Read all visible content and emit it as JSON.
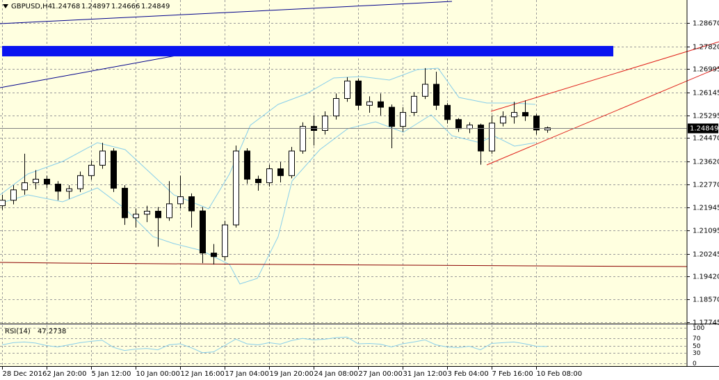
{
  "chart_data": {
    "type": "candlestick",
    "title": "GBPUSD,H4",
    "ohlc": [
      [
        1.22,
        1.224,
        1.2185,
        1.222
      ],
      [
        1.222,
        1.2275,
        1.2205,
        1.2258
      ],
      [
        1.2258,
        1.239,
        1.224,
        1.2284
      ],
      [
        1.2284,
        1.233,
        1.226,
        1.2297
      ],
      [
        1.2297,
        1.231,
        1.2265,
        1.2279
      ],
      [
        1.2279,
        1.229,
        1.222,
        1.2253
      ],
      [
        1.2253,
        1.2275,
        1.2225,
        1.2262
      ],
      [
        1.2262,
        1.2325,
        1.225,
        1.231
      ],
      [
        1.231,
        1.2365,
        1.2295,
        1.2348
      ],
      [
        1.2348,
        1.243,
        1.2335,
        1.24
      ],
      [
        1.24,
        1.241,
        1.225,
        1.2264
      ],
      [
        1.2264,
        1.2275,
        1.213,
        1.2156
      ],
      [
        1.2156,
        1.219,
        1.212,
        1.2169
      ],
      [
        1.2169,
        1.22,
        1.214,
        1.218
      ],
      [
        1.218,
        1.2195,
        1.205,
        1.2156
      ],
      [
        1.2156,
        1.229,
        1.2145,
        1.2207
      ],
      [
        1.2207,
        1.231,
        1.219,
        1.2233
      ],
      [
        1.2233,
        1.2245,
        1.212,
        1.2181
      ],
      [
        1.2181,
        1.2195,
        1.199,
        1.2027
      ],
      [
        1.2027,
        1.206,
        1.1985,
        1.2014
      ],
      [
        1.2014,
        1.2145,
        1.2,
        1.213
      ],
      [
        1.213,
        1.242,
        1.212,
        1.24
      ],
      [
        1.24,
        1.241,
        1.228,
        1.2297
      ],
      [
        1.2297,
        1.231,
        1.2255,
        1.2284
      ],
      [
        1.2284,
        1.235,
        1.227,
        1.2335
      ],
      [
        1.2335,
        1.236,
        1.2285,
        1.231
      ],
      [
        1.231,
        1.2415,
        1.23,
        1.24
      ],
      [
        1.24,
        1.2505,
        1.239,
        1.249
      ],
      [
        1.249,
        1.253,
        1.242,
        1.2475
      ],
      [
        1.2475,
        1.2545,
        1.246,
        1.2528
      ],
      [
        1.2528,
        1.261,
        1.2515,
        1.2592
      ],
      [
        1.2592,
        1.267,
        1.258,
        1.2656
      ],
      [
        1.2656,
        1.2665,
        1.255,
        1.2567
      ],
      [
        1.2567,
        1.26,
        1.254,
        1.258
      ],
      [
        1.258,
        1.261,
        1.253,
        1.256
      ],
      [
        1.256,
        1.257,
        1.241,
        1.249
      ],
      [
        1.249,
        1.256,
        1.247,
        1.2541
      ],
      [
        1.2541,
        1.2615,
        1.253,
        1.26
      ],
      [
        1.26,
        1.2703,
        1.259,
        1.2644
      ],
      [
        1.2644,
        1.269,
        1.255,
        1.2567
      ],
      [
        1.2567,
        1.2575,
        1.25,
        1.2515
      ],
      [
        1.2515,
        1.252,
        1.247,
        1.2482
      ],
      [
        1.2482,
        1.2505,
        1.2465,
        1.2495
      ],
      [
        1.2495,
        1.25,
        1.235,
        1.24
      ],
      [
        1.24,
        1.253,
        1.239,
        1.2502
      ],
      [
        1.2502,
        1.2545,
        1.249,
        1.2525
      ],
      [
        1.2525,
        1.258,
        1.25,
        1.2541
      ],
      [
        1.2541,
        1.2585,
        1.251,
        1.2528
      ],
      [
        1.2528,
        1.2535,
        1.246,
        1.24768
      ],
      [
        1.24768,
        1.24897,
        1.24666,
        1.24849
      ]
    ],
    "xlim": [
      -0.1875,
      61.5625
    ],
    "xticks": [
      {
        "value": 0,
        "label": "28 Dec 2016"
      },
      {
        "value": 4,
        "label": "2 Jan 20:00"
      },
      {
        "value": 8,
        "label": "5 Jan 12:00"
      },
      {
        "value": 12,
        "label": "10 Jan 00:00"
      },
      {
        "value": 16,
        "label": "12 Jan 16:00"
      },
      {
        "value": 20,
        "label": "17 Jan 04:00"
      },
      {
        "value": 24,
        "label": "19 Jan 20:00"
      },
      {
        "value": 28,
        "label": "24 Jan 08:00"
      },
      {
        "value": 32,
        "label": "27 Jan 00:00"
      },
      {
        "value": 36,
        "label": "31 Jan 12:00"
      },
      {
        "value": 40,
        "label": "3 Feb 04:00"
      },
      {
        "value": 44,
        "label": "7 Feb 16:00"
      },
      {
        "value": 48,
        "label": "10 Feb 08:00"
      }
    ],
    "ylim": [
      1.1769,
      1.2952
    ],
    "yticks": [
      {
        "value": 1.2867,
        "label": "1.28670"
      },
      {
        "value": 1.2782,
        "label": "1.27820"
      },
      {
        "value": 1.26995,
        "label": "1.26995"
      },
      {
        "value": 1.26145,
        "label": "1.26145"
      },
      {
        "value": 1.25295,
        "label": "1.25295"
      },
      {
        "value": 1.2447,
        "label": "1.24470"
      },
      {
        "value": 1.2362,
        "label": "1.23620"
      },
      {
        "value": 1.2277,
        "label": "1.22770"
      },
      {
        "value": 1.21945,
        "label": "1.21945"
      },
      {
        "value": 1.21095,
        "label": "1.21095"
      },
      {
        "value": 1.20245,
        "label": "1.20245"
      },
      {
        "value": 1.1942,
        "label": "1.19420"
      },
      {
        "value": 1.1857,
        "label": "1.18570"
      },
      {
        "value": 1.17745,
        "label": "1.17745"
      }
    ],
    "grid": true,
    "background": "#ffffe0",
    "bull_color": "#ffffff",
    "bear_color": "#000000",
    "rsi": {
      "title": "RSI(14)",
      "color": "#87ceeb",
      "values": [
        52,
        58,
        60,
        57,
        50,
        46,
        52,
        58,
        62,
        65,
        45,
        36,
        40,
        42,
        38,
        52,
        55,
        44,
        30,
        32,
        50,
        68,
        55,
        52,
        58,
        54,
        64,
        70,
        66,
        68,
        72,
        74,
        55,
        56,
        54,
        46,
        55,
        60,
        66,
        52,
        46,
        44,
        48,
        38,
        56,
        58,
        60,
        55,
        48,
        47.2738
      ],
      "ylim": [
        0,
        100
      ],
      "yticks": [
        100,
        70,
        50,
        30,
        0
      ]
    }
  }
}
